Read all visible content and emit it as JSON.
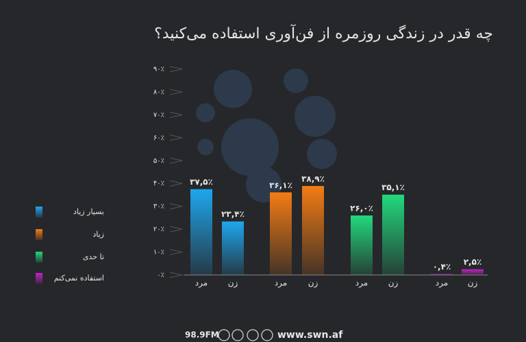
{
  "chart_data": {
    "type": "bar",
    "title": "چه قدر در زندگی روزمره از فن‌آوری استفاده می‌کنید؟",
    "categories": [
      "مرد",
      "زن"
    ],
    "series": [
      {
        "name": "بسیار زیاد",
        "color": "#1ea7ee",
        "values": [
          37.5,
          23.4
        ],
        "value_labels": [
          "۳۷,۵٪",
          "۲۳,۴٪"
        ]
      },
      {
        "name": "زیاد",
        "color": "#f47c14",
        "values": [
          36.1,
          38.9
        ],
        "value_labels": [
          "۳۶,۱٪",
          "۳۸,۹٪"
        ]
      },
      {
        "name": "تا حدی",
        "color": "#22d97e",
        "values": [
          26.0,
          35.1
        ],
        "value_labels": [
          "۲۶,۰٪",
          "۳۵,۱٪"
        ]
      },
      {
        "name": "استفاده نمی‌کنم",
        "color": "#c620cc",
        "values": [
          0.4,
          2.5
        ],
        "value_labels": [
          "۰,۴٪",
          "۲,۵٪"
        ]
      }
    ],
    "ylim": [
      0,
      90
    ],
    "yticks": [
      {
        "value": 0,
        "label": "۰٪"
      },
      {
        "value": 10,
        "label": "۱۰٪"
      },
      {
        "value": 20,
        "label": "۲۰٪"
      },
      {
        "value": 30,
        "label": "۳۰٪"
      },
      {
        "value": 40,
        "label": "۴۰٪"
      },
      {
        "value": 50,
        "label": "۵۰٪"
      },
      {
        "value": 60,
        "label": "۶۰٪"
      },
      {
        "value": 70,
        "label": "۷۰٪"
      },
      {
        "value": 80,
        "label": "۸۰٪"
      },
      {
        "value": 90,
        "label": "۹۰٪"
      }
    ],
    "grid": false,
    "legend": "left"
  },
  "footer": {
    "frequency": "98.9FM",
    "website": "www.swn.af"
  }
}
